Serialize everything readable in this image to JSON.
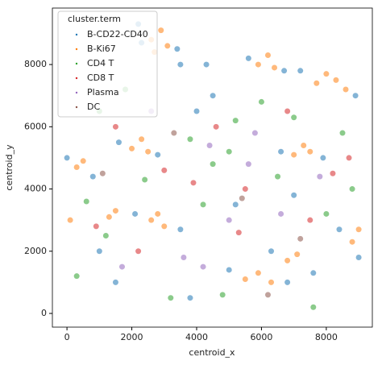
{
  "chart_data": {
    "type": "scatter",
    "xlabel": "centroid_x",
    "ylabel": "centroid_y",
    "legend_title": "cluster.term",
    "legend": "upper left",
    "xlim": [
      -450,
      9420
    ],
    "ylim": [
      -440,
      9815
    ],
    "xticks": [
      0,
      2000,
      4000,
      6000,
      8000
    ],
    "yticks": [
      0,
      2000,
      4000,
      6000,
      8000
    ],
    "series": [
      {
        "name": "B-CD22-CD40",
        "color": "#1f77b4",
        "x": [
          2300,
          3400,
          2200,
          3500,
          5600,
          6700,
          7200,
          8900,
          6600,
          7900,
          1600,
          2800,
          0,
          800,
          2100,
          3500,
          5000,
          6800,
          6300,
          7600,
          8400,
          9000,
          4000,
          4500,
          1500,
          3800,
          5200,
          7000,
          1000,
          4300
        ],
        "y": [
          8700,
          8500,
          9300,
          8000,
          8200,
          7800,
          7800,
          7000,
          5200,
          5000,
          5500,
          5100,
          5000,
          4400,
          3200,
          2700,
          1400,
          1000,
          2000,
          1300,
          2700,
          1800,
          6500,
          7000,
          1000,
          500,
          3500,
          3800,
          2000,
          8000
        ]
      },
      {
        "name": "B-Ki67",
        "color": "#ff7f0e",
        "x": [
          2600,
          2900,
          3100,
          2700,
          5900,
          6200,
          6400,
          7700,
          8000,
          8300,
          8600,
          7000,
          7300,
          7500,
          2000,
          2300,
          2500,
          300,
          500,
          2600,
          2800,
          3000,
          5500,
          5900,
          6300,
          6800,
          7100,
          8800,
          9000,
          1300,
          1500,
          100
        ],
        "y": [
          8800,
          9100,
          8600,
          8400,
          8000,
          8300,
          7900,
          7400,
          7700,
          7500,
          7200,
          5100,
          5400,
          5200,
          5300,
          5600,
          5200,
          4700,
          4900,
          3000,
          3200,
          2800,
          1100,
          1300,
          1000,
          1700,
          1900,
          2300,
          2700,
          3100,
          3300,
          3000
        ]
      },
      {
        "name": "CD4 T",
        "color": "#2ca02c",
        "x": [
          1000,
          1800,
          3800,
          4500,
          5200,
          6000,
          7000,
          8500,
          600,
          1200,
          2400,
          4200,
          5000,
          6500,
          8000,
          300,
          3200,
          4800,
          7600,
          8800
        ],
        "y": [
          6500,
          7200,
          5600,
          4800,
          6200,
          6800,
          6300,
          5800,
          3600,
          2500,
          4300,
          3500,
          5200,
          4400,
          3200,
          1200,
          500,
          600,
          200,
          4000
        ]
      },
      {
        "name": "CD8 T",
        "color": "#d62728",
        "x": [
          1500,
          3000,
          4600,
          5500,
          6800,
          8200,
          900,
          2200,
          3900,
          5300,
          7500,
          8700
        ],
        "y": [
          6000,
          4600,
          6000,
          4000,
          6500,
          4500,
          2800,
          2000,
          4200,
          2600,
          3000,
          5000
        ]
      },
      {
        "name": "Plasma",
        "color": "#9467bd",
        "x": [
          4400,
          5000,
          5600,
          3600,
          4200,
          6600,
          2600,
          7800,
          5800,
          1700
        ],
        "y": [
          5400,
          3000,
          4800,
          1800,
          1500,
          3200,
          6500,
          4400,
          5800,
          1500
        ]
      },
      {
        "name": "DC",
        "color": "#8c564b",
        "x": [
          3300,
          5400,
          7200,
          1100,
          6200
        ],
        "y": [
          5800,
          3700,
          2400,
          4500,
          600
        ]
      }
    ]
  }
}
